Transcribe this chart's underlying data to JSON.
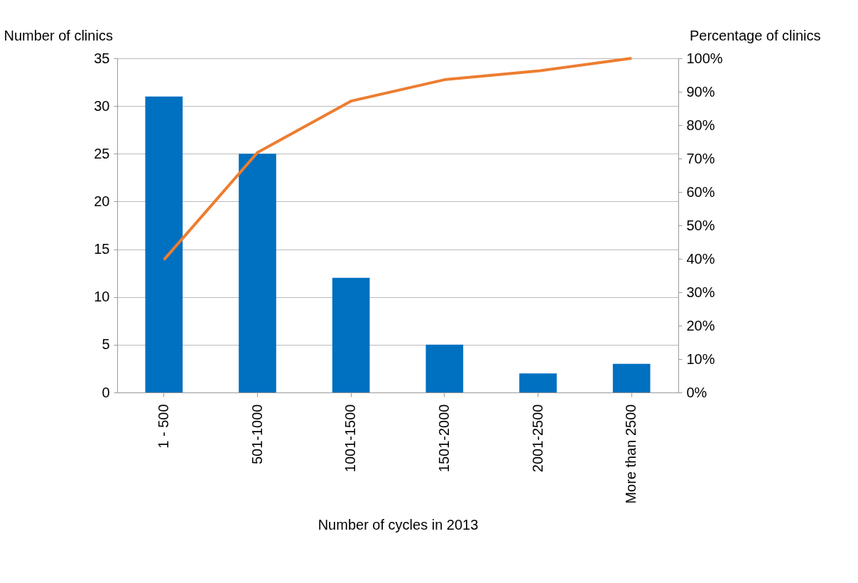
{
  "chart_data": {
    "type": "bar",
    "xlabel": "Number of cycles in 2013",
    "ylabel": "Number of clinics",
    "y2label": "Percentage of clinics",
    "categories": [
      "1 - 500",
      "501-1000",
      "1001-1500",
      "1501-2000",
      "2001-2500",
      "More than 2500"
    ],
    "series": [
      {
        "color": "#0070c0",
        "values": [
          31,
          25,
          12,
          5,
          2,
          3
        ]
      },
      {
        "type": "line",
        "axis": "y2",
        "color": "#ed7d31",
        "values": [
          39.7,
          71.8,
          87.2,
          93.6,
          96.2,
          100
        ]
      }
    ],
    "ylim": [
      0,
      35
    ],
    "yticks": [
      0,
      5,
      10,
      15,
      20,
      25,
      30,
      35
    ],
    "y2lim": [
      0,
      100
    ],
    "y2ticks": [
      {
        "value": 0,
        "label": "0%"
      },
      {
        "value": 10,
        "label": "10%"
      },
      {
        "value": 20,
        "label": "20%"
      },
      {
        "value": 30,
        "label": "30%"
      },
      {
        "value": 40,
        "label": "40%"
      },
      {
        "value": 50,
        "label": "50%"
      },
      {
        "value": 60,
        "label": "60%"
      },
      {
        "value": 70,
        "label": "70%"
      },
      {
        "value": 80,
        "label": "80%"
      },
      {
        "value": 90,
        "label": "90%"
      },
      {
        "value": 100,
        "label": "100%"
      }
    ],
    "grid": "y",
    "marker": "none",
    "line_style": "solid"
  }
}
